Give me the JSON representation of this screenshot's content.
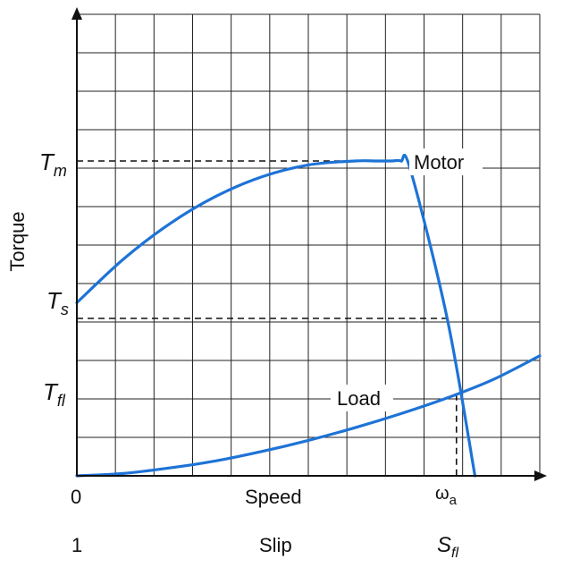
{
  "chart_data": {
    "type": "line",
    "ylabel": "Torque",
    "xlabel": "Speed",
    "x_start_label": "0",
    "x_speed_label": "Speed",
    "x_omega_label": "ω",
    "x_omega_sub": "a",
    "slip_start_label": "1",
    "slip_label": "Slip",
    "slip_end_label": "S",
    "slip_end_sub": "fl",
    "xlim": [
      0,
      1
    ],
    "ylim": [
      0,
      1
    ],
    "grid": true,
    "y_markers": [
      {
        "main": "T",
        "sub": "m",
        "value": 0.8
      },
      {
        "main": "T",
        "sub": "s",
        "value": 0.4
      },
      {
        "main": "T",
        "sub": "fl",
        "value": 0.2
      }
    ],
    "omega_a": 0.82,
    "series": [
      {
        "name": "Motor",
        "color": "#1e73d6",
        "x": [
          0,
          0.1,
          0.2,
          0.3,
          0.4,
          0.5,
          0.6,
          0.65,
          0.68,
          0.7,
          0.72,
          0.8,
          0.86
        ],
        "y": [
          0.44,
          0.55,
          0.64,
          0.71,
          0.76,
          0.79,
          0.8,
          0.8,
          0.8,
          0.8,
          0.78,
          0.4,
          0.0
        ]
      },
      {
        "name": "Load",
        "color": "#1e73d6",
        "x": [
          0,
          0.1,
          0.2,
          0.3,
          0.4,
          0.5,
          0.6,
          0.7,
          0.8,
          0.9,
          1.0
        ],
        "y": [
          0,
          0.006,
          0.02,
          0.038,
          0.062,
          0.09,
          0.122,
          0.158,
          0.198,
          0.245,
          0.305
        ]
      }
    ]
  }
}
